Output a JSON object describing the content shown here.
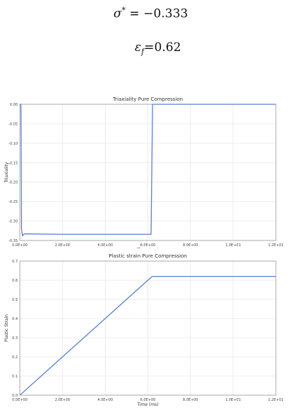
{
  "equations": {
    "sigma_symbol": "σ",
    "sigma_sup": "*",
    "sigma_rhs": " = −0.333",
    "eps_symbol": "ε",
    "eps_sub": "f",
    "eps_rhs": "=0.62"
  },
  "chart_data": [
    {
      "type": "line",
      "title": "Triaxiality Pure Compression",
      "xlabel": "Time (ms)",
      "ylabel": "Triaxiality",
      "xlim": [
        0,
        12
      ],
      "ylim": [
        -0.35,
        0.0
      ],
      "xticks": [
        0,
        2,
        4,
        6,
        8,
        10,
        12
      ],
      "xtick_labels": [
        "0.0E+00",
        "2.0E+00",
        "4.0E+00",
        "6.0E+00",
        "8.0E+00",
        "1.0E+01",
        "1.2E+01"
      ],
      "yticks": [
        0.0,
        -0.05,
        -0.1,
        -0.15,
        -0.2,
        -0.25,
        -0.3,
        -0.35
      ],
      "ytick_labels": [
        "0.00",
        "-0.05",
        "-0.10",
        "-0.15",
        "-0.20",
        "-0.25",
        "-0.30",
        "-0.35"
      ],
      "grid": true,
      "color": "#5b7fd0",
      "series": [
        {
          "x": [
            0,
            0.05,
            0.08,
            0.12,
            0.2,
            0.3,
            2.0,
            6.15,
            6.2,
            6.22,
            12.0
          ],
          "y": [
            0,
            0,
            -0.32,
            -0.338,
            -0.333,
            -0.333,
            -0.334,
            -0.334,
            -0.1,
            0,
            0
          ]
        }
      ]
    },
    {
      "type": "line",
      "title": "Plastic strain Pure Compression",
      "xlabel": "Time (ms)",
      "ylabel": "Plastic Strain",
      "xlim": [
        0,
        12
      ],
      "ylim": [
        0,
        0.7
      ],
      "xticks": [
        0,
        2,
        4,
        6,
        8,
        10,
        12
      ],
      "xtick_labels": [
        "0.0E+00",
        "2.0E+00",
        "4.0E+00",
        "6.0E+00",
        "8.0E+00",
        "1.0E+01",
        "1.2E+01"
      ],
      "yticks": [
        0,
        0.1,
        0.2,
        0.3,
        0.4,
        0.5,
        0.6,
        0.7
      ],
      "ytick_labels": [
        "0.0",
        "0.1",
        "0.2",
        "0.3",
        "0.4",
        "0.5",
        "0.6",
        "0.7"
      ],
      "grid": true,
      "color": "#5b7fd0",
      "series": [
        {
          "x": [
            0,
            0.1,
            6.2,
            12.0
          ],
          "y": [
            0,
            0.01,
            0.62,
            0.62
          ]
        }
      ]
    }
  ]
}
